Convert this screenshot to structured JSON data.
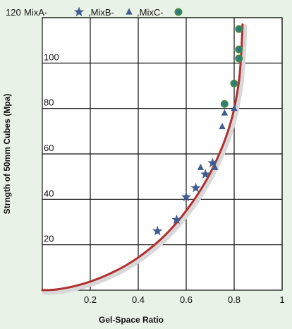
{
  "chart_data": {
    "type": "scatter",
    "xlabel": "Gel-Space Ratio",
    "ylabel": "Strngth of 50mm Cubes (Mpa)",
    "xlim": [
      0,
      1
    ],
    "ylim": [
      0,
      120
    ],
    "x_ticks": [
      "0.2",
      "0.4",
      "0.6",
      "0.8",
      "1"
    ],
    "y_ticks": [
      "20",
      "40",
      "60",
      "80",
      "100",
      "120"
    ],
    "grid": true,
    "legend_position": "top",
    "series": [
      {
        "name": "MixA-",
        "marker": "star",
        "color": "#3e5c8f",
        "x": [
          0.48,
          0.56,
          0.6,
          0.64,
          0.68,
          0.71
        ],
        "y": [
          26,
          31,
          41,
          45,
          51,
          56
        ]
      },
      {
        "name": ",MixB-",
        "marker": "triangle",
        "color": "#3e5c8f",
        "x": [
          0.66,
          0.72,
          0.75,
          0.76,
          0.8
        ],
        "y": [
          54,
          54,
          72,
          78,
          80
        ]
      },
      {
        "name": ",MixC-",
        "marker": "circle",
        "color": "#2f7d78",
        "x": [
          0.76,
          0.8,
          0.82,
          0.82,
          0.82
        ],
        "y": [
          82,
          91,
          102,
          106,
          115
        ]
      }
    ],
    "curve": {
      "color": "#b03030",
      "x": [
        0.0,
        0.05,
        0.1,
        0.15,
        0.2,
        0.25,
        0.3,
        0.35,
        0.4,
        0.45,
        0.5,
        0.55,
        0.6,
        0.65,
        0.7,
        0.75,
        0.78,
        0.8,
        0.82,
        0.83,
        0.835
      ],
      "y": [
        0,
        0.2,
        1.0,
        2.2,
        3.8,
        5.8,
        8.2,
        11.0,
        14.4,
        18.4,
        23.0,
        28.5,
        35.0,
        42.5,
        51.5,
        63.0,
        72.0,
        80.0,
        92.0,
        105.0,
        117.0
      ]
    }
  }
}
